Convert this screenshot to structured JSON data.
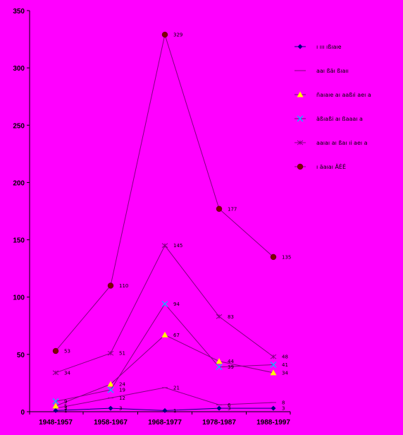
{
  "chart_data": {
    "type": "line",
    "categories": [
      "1948-1957",
      "1958-1967",
      "1968-1977",
      "1978-1987",
      "1988-1997"
    ],
    "ylim": [
      0,
      350
    ],
    "yticks": [
      0,
      50,
      100,
      150,
      200,
      250,
      300,
      350
    ],
    "grid": false,
    "legend_position": "right",
    "series": [
      {
        "name": "ı ııı ıßıaıe",
        "values": [
          1,
          3,
          1,
          3,
          3
        ],
        "labels": [
          "1",
          "3",
          "1",
          "3",
          "3"
        ],
        "color": "#000080",
        "marker": "diamond",
        "marker_color": "#000080"
      },
      {
        "name": "aaı ßäı ßıaıı",
        "values": [
          3,
          12,
          21,
          6,
          8
        ],
        "labels": [
          "3",
          "12",
          "21",
          "6",
          "8"
        ],
        "color": "#800080",
        "marker": "dash",
        "marker_color": "#800080"
      },
      {
        "name": "ñaıaıe aı aaßıi aeı a",
        "values": [
          5,
          24,
          67,
          44,
          34
        ],
        "labels": [
          "5",
          "24",
          "67",
          "44",
          "34"
        ],
        "color": "#800080",
        "marker": "triangle",
        "marker_color": "#ffff00"
      },
      {
        "name": "äßıaßi aı ßaaaı a",
        "values": [
          9,
          19,
          94,
          39,
          41
        ],
        "labels": [
          "9",
          "19",
          "94",
          "39",
          "41"
        ],
        "color": "#800080",
        "marker": "x",
        "marker_color": "#00bfff"
      },
      {
        "name": "aaıaı aı ßaı ıi aeı a",
        "values": [
          34,
          51,
          145,
          83,
          48
        ],
        "labels": [
          "34",
          "51",
          "145",
          "83",
          "48"
        ],
        "color": "#800080",
        "marker": "star",
        "marker_color": "#800080"
      },
      {
        "name": "ı äaıaı ÄÉÉ",
        "values": [
          53,
          110,
          329,
          177,
          135
        ],
        "labels": [
          "53",
          "110",
          "329",
          "177",
          "135"
        ],
        "color": "#800080",
        "marker": "circle",
        "marker_color": "#800000"
      }
    ]
  }
}
